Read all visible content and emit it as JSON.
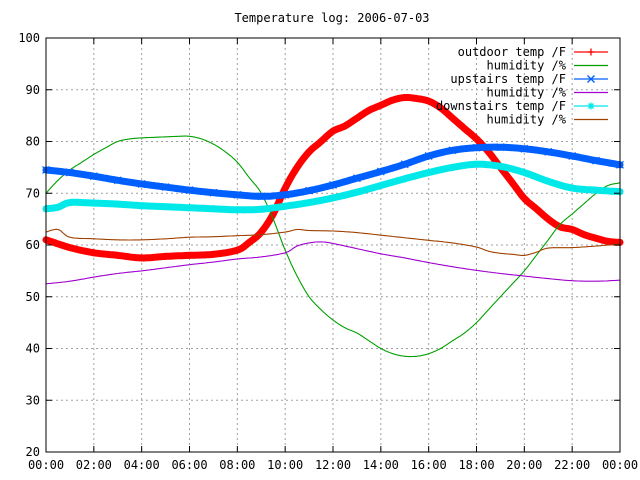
{
  "chart_data": {
    "type": "line",
    "title": "Temperature log: 2006-07-03",
    "xlabel": "",
    "ylabel": "",
    "ylim": [
      20,
      100
    ],
    "yticks": [
      20,
      30,
      40,
      50,
      60,
      70,
      80,
      90,
      100
    ],
    "xlim": [
      0,
      24
    ],
    "xticks": [
      {
        "x": 0,
        "label": "00:00"
      },
      {
        "x": 2,
        "label": "02:00"
      },
      {
        "x": 4,
        "label": "04:00"
      },
      {
        "x": 6,
        "label": "06:00"
      },
      {
        "x": 8,
        "label": "08:00"
      },
      {
        "x": 10,
        "label": "10:00"
      },
      {
        "x": 12,
        "label": "12:00"
      },
      {
        "x": 14,
        "label": "14:00"
      },
      {
        "x": 16,
        "label": "16:00"
      },
      {
        "x": 18,
        "label": "18:00"
      },
      {
        "x": 20,
        "label": "20:00"
      },
      {
        "x": 22,
        "label": "22:00"
      },
      {
        "x": 24,
        "label": "00:00"
      }
    ],
    "grid": true,
    "legend_position": "top-right",
    "series": [
      {
        "name": "outdoor temp /F",
        "color": "#ff0000",
        "marker": "plus",
        "points": [
          [
            0,
            61
          ],
          [
            1,
            59.5
          ],
          [
            2,
            58.5
          ],
          [
            3,
            58
          ],
          [
            4,
            57.5
          ],
          [
            5,
            57.8
          ],
          [
            6,
            58
          ],
          [
            7,
            58.2
          ],
          [
            8,
            59
          ],
          [
            8.5,
            60.5
          ],
          [
            9,
            62.5
          ],
          [
            9.5,
            66
          ],
          [
            10,
            71
          ],
          [
            10.5,
            75
          ],
          [
            11,
            78
          ],
          [
            11.5,
            80
          ],
          [
            12,
            82
          ],
          [
            12.5,
            83
          ],
          [
            13,
            84.5
          ],
          [
            13.5,
            86
          ],
          [
            14,
            87
          ],
          [
            14.5,
            88
          ],
          [
            15,
            88.5
          ],
          [
            15.5,
            88.3
          ],
          [
            16,
            87.8
          ],
          [
            16.5,
            86.5
          ],
          [
            17,
            84.5
          ],
          [
            17.5,
            82.5
          ],
          [
            18,
            80.5
          ],
          [
            18.5,
            78
          ],
          [
            19,
            75
          ],
          [
            19.5,
            72
          ],
          [
            20,
            69
          ],
          [
            20.5,
            67
          ],
          [
            21,
            65
          ],
          [
            21.5,
            63.5
          ],
          [
            22,
            63
          ],
          [
            22.5,
            62
          ],
          [
            23,
            61.3
          ],
          [
            23.5,
            60.7
          ],
          [
            24,
            60.5
          ]
        ]
      },
      {
        "name": "humidity /%",
        "color": "#00a000",
        "marker": "none",
        "points": [
          [
            0,
            70
          ],
          [
            0.5,
            72.5
          ],
          [
            1,
            74.5
          ],
          [
            1.5,
            76
          ],
          [
            2,
            77.5
          ],
          [
            2.5,
            78.8
          ],
          [
            3,
            80
          ],
          [
            3.5,
            80.5
          ],
          [
            4,
            80.7
          ],
          [
            4.5,
            80.8
          ],
          [
            5,
            80.9
          ],
          [
            5.5,
            81
          ],
          [
            6,
            81
          ],
          [
            6.5,
            80.5
          ],
          [
            7,
            79.5
          ],
          [
            7.5,
            78
          ],
          [
            8,
            76
          ],
          [
            8.5,
            73
          ],
          [
            9,
            70
          ],
          [
            9.5,
            65
          ],
          [
            10,
            59
          ],
          [
            10.5,
            54
          ],
          [
            11,
            50
          ],
          [
            11.5,
            47.5
          ],
          [
            12,
            45.5
          ],
          [
            12.5,
            44
          ],
          [
            13,
            43
          ],
          [
            13.5,
            41.5
          ],
          [
            14,
            40
          ],
          [
            14.5,
            39
          ],
          [
            15,
            38.5
          ],
          [
            15.5,
            38.5
          ],
          [
            16,
            39
          ],
          [
            16.5,
            40
          ],
          [
            17,
            41.5
          ],
          [
            17.5,
            43
          ],
          [
            18,
            45
          ],
          [
            18.5,
            47.5
          ],
          [
            19,
            50
          ],
          [
            19.5,
            52.5
          ],
          [
            20,
            55
          ],
          [
            20.5,
            58
          ],
          [
            21,
            61
          ],
          [
            21.5,
            64
          ],
          [
            22,
            66
          ],
          [
            22.5,
            68
          ],
          [
            23,
            70
          ],
          [
            23.5,
            71.5
          ],
          [
            24,
            72
          ]
        ]
      },
      {
        "name": "upstairs temp /F",
        "color": "#0060ff",
        "marker": "x",
        "points": [
          [
            0,
            74.5
          ],
          [
            1,
            74
          ],
          [
            2,
            73.3
          ],
          [
            3,
            72.5
          ],
          [
            4,
            71.8
          ],
          [
            5,
            71.2
          ],
          [
            6,
            70.6
          ],
          [
            7,
            70.1
          ],
          [
            8,
            69.7
          ],
          [
            9,
            69.4
          ],
          [
            10,
            69.7
          ],
          [
            11,
            70.5
          ],
          [
            12,
            71.6
          ],
          [
            13,
            72.9
          ],
          [
            14,
            74.2
          ],
          [
            15,
            75.6
          ],
          [
            16,
            77.2
          ],
          [
            17,
            78.3
          ],
          [
            18,
            78.8
          ],
          [
            19,
            78.9
          ],
          [
            20,
            78.6
          ],
          [
            21,
            78
          ],
          [
            22,
            77.2
          ],
          [
            23,
            76.3
          ],
          [
            24,
            75.5
          ]
        ]
      },
      {
        "name": "humidity /%",
        "color": "#a000d0",
        "marker": "none",
        "points": [
          [
            0,
            52.5
          ],
          [
            1,
            53
          ],
          [
            2,
            53.8
          ],
          [
            3,
            54.5
          ],
          [
            4,
            55
          ],
          [
            5,
            55.6
          ],
          [
            6,
            56.2
          ],
          [
            7,
            56.7
          ],
          [
            8,
            57.3
          ],
          [
            9,
            57.7
          ],
          [
            10,
            58.5
          ],
          [
            10.5,
            59.8
          ],
          [
            11,
            60.4
          ],
          [
            11.5,
            60.6
          ],
          [
            12,
            60.3
          ],
          [
            13,
            59.3
          ],
          [
            14,
            58.3
          ],
          [
            15,
            57.5
          ],
          [
            16,
            56.6
          ],
          [
            17,
            55.8
          ],
          [
            18,
            55.1
          ],
          [
            19,
            54.5
          ],
          [
            20,
            54
          ],
          [
            21,
            53.5
          ],
          [
            22,
            53.1
          ],
          [
            23,
            53
          ],
          [
            24,
            53.2
          ]
        ]
      },
      {
        "name": "downstairs temp /F",
        "color": "#00e8e8",
        "marker": "star",
        "points": [
          [
            0,
            67
          ],
          [
            0.5,
            67.3
          ],
          [
            1,
            68.2
          ],
          [
            2,
            68.1
          ],
          [
            3,
            67.9
          ],
          [
            4,
            67.6
          ],
          [
            5,
            67.4
          ],
          [
            6,
            67.2
          ],
          [
            7,
            67
          ],
          [
            8,
            66.8
          ],
          [
            9,
            66.9
          ],
          [
            10,
            67.5
          ],
          [
            11,
            68.2
          ],
          [
            12,
            69.1
          ],
          [
            13,
            70.2
          ],
          [
            14,
            71.5
          ],
          [
            15,
            72.8
          ],
          [
            16,
            74
          ],
          [
            17,
            75
          ],
          [
            18,
            75.6
          ],
          [
            19,
            75.2
          ],
          [
            20,
            74
          ],
          [
            21,
            72.3
          ],
          [
            22,
            71
          ],
          [
            23,
            70.6
          ],
          [
            24,
            70.3
          ]
        ]
      },
      {
        "name": "humidity /%",
        "color": "#a04000",
        "marker": "none",
        "points": [
          [
            0,
            62.5
          ],
          [
            0.5,
            63
          ],
          [
            1,
            61.5
          ],
          [
            2,
            61.2
          ],
          [
            3,
            61
          ],
          [
            4,
            61
          ],
          [
            5,
            61.2
          ],
          [
            6,
            61.5
          ],
          [
            7,
            61.6
          ],
          [
            8,
            61.8
          ],
          [
            9,
            62
          ],
          [
            10,
            62.5
          ],
          [
            10.5,
            63
          ],
          [
            11,
            62.8
          ],
          [
            12,
            62.7
          ],
          [
            13,
            62.4
          ],
          [
            14,
            61.9
          ],
          [
            15,
            61.4
          ],
          [
            16,
            60.9
          ],
          [
            17,
            60.4
          ],
          [
            18,
            59.6
          ],
          [
            18.5,
            58.8
          ],
          [
            19,
            58.4
          ],
          [
            19.5,
            58.2
          ],
          [
            20,
            58
          ],
          [
            20.5,
            58.6
          ],
          [
            21,
            59.4
          ],
          [
            22,
            59.5
          ],
          [
            23,
            59.8
          ],
          [
            24,
            60.2
          ]
        ]
      }
    ]
  }
}
